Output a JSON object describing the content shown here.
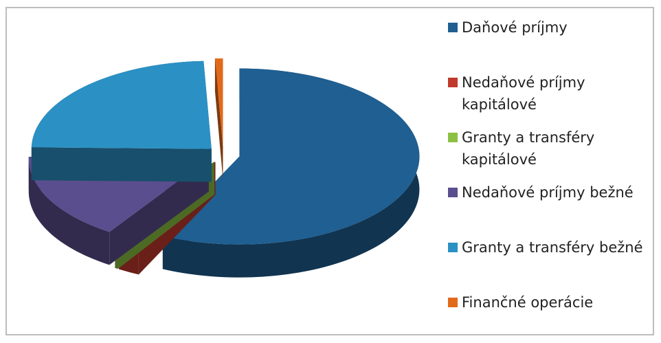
{
  "chart_data": {
    "type": "pie3d",
    "categories": [
      "Daňové príjmy",
      "Nedaňové príjmy kapitálové",
      "Granty a transféry kapitálové",
      "Nedaňové príjmy bežné",
      "Granty a transféry bežné",
      "Finančné operácie"
    ],
    "values": [
      57,
      2,
      0.3,
      16,
      24,
      0.7
    ],
    "colors": [
      "#1f5f92",
      "#c0392b",
      "#8cc043",
      "#5b4e8e",
      "#2b90c4",
      "#e2691b"
    ],
    "legend": "right"
  }
}
